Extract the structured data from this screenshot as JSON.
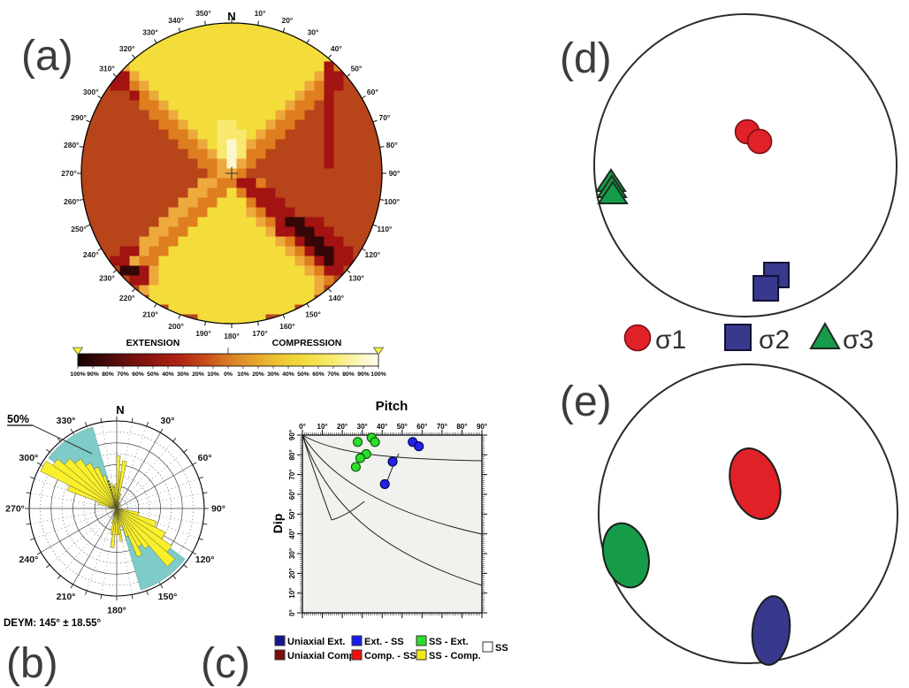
{
  "figure": {
    "panel_labels": {
      "a": "(a)",
      "b": "(b)",
      "c": "(c)",
      "d": "(d)",
      "e": "(e)"
    }
  },
  "chart_data": [
    {
      "id": "a",
      "type": "heatmap",
      "north_label": "N",
      "compass_labels": [
        "10°",
        "20°",
        "30°",
        "40°",
        "50°",
        "60°",
        "70°",
        "80°",
        "90°",
        "100°",
        "110°",
        "120°",
        "130°",
        "140°",
        "150°",
        "160°",
        "170°",
        "180°",
        "190°",
        "200°",
        "210°",
        "220°",
        "230°",
        "240°",
        "250°",
        "260°",
        "270°",
        "280°",
        "290°",
        "300°",
        "310°",
        "320°",
        "330°",
        "340°",
        "350°"
      ],
      "palette": {
        "B": "#b8441a",
        "O": "#de7e1e",
        "A": "#eda93c",
        "Y": "#f4dd3a",
        "y": "#f8e96e",
        "W": "#fdf7d0",
        "R": "#a31311",
        "K": "#350607"
      },
      "grid_rows": [
        "AYYYYYYYYYYYYYYYYYYYYYYYYYYYYAO",
        "OAYYYYYYYYYYYYYYYYYYYYYYYYYYAOO",
        "OOAYYYYYYYYYYYYYYYYYYYYYYYYAOOB",
        "BOOAYYYYYYYYYYYYYYYYYYYYYYAOOBB",
        "BBOOAYYYYYYYYYYYYYYYYYYYYROOBBB",
        "BBBRRAYYYYYYYYYYYYYYYYYYARRBBBB",
        "BBBRROAYYYYYYYYYYYYYYYYAORRBBBB",
        "BBBBBROAYYYYYYYYYYYYYYAOORBBBBB",
        "BBBBBBOOAYYYYYYYYYYYYAOOBRBBBBB",
        "BBBBBBBOOAYYYYYYYYYYAOOBBRBBBBB",
        "BBBBBBBBOOAYYYyyYYYAOOBBBRBBBBB",
        "BBBBBBBBBOOAYYyyyYAOOBBBBRBBBBB",
        "BBBBBBBBBBOOAYyWyAOOBBBBBRBBBBB",
        "BBBBBBBBBBBOOAyWyOOBBBBBBRBBBBB",
        "BBBBBBBBBBBBOOAWAOBBBBBBBRBBBBB",
        "BBBBBBBBBBBBBOAAOBBBBBBBBBBBBBB",
        "BBBBBBBBBBBBAAOORROBBBBBBBBBBBB",
        "BBBBBBBBBBBAAOOYORRRBBBBBBBBBBB",
        "BBBBBBBBBBAAOOYYYORRRBBBBBBBBBB",
        "BBBBBBBBBAAOOYYYYAORRRBBBBBBBBB",
        "BBBBBBBBAAOOYYYYYYAORKKRRBBBBBB",
        "BBBBBBBAAOOYYYYYYYYARRKKRRBBBBB",
        "BBBBBBAAOOYYYYYYYYYYAORKKRRBBBB",
        "BBBBRRAOOYYYYYYYYYYYYAORKKRRBBB",
        "BBBRRAOOYYYYYYYYYYYYYYAORKRRBBB",
        "BBBBKKRAYYYYYYYYYYYYYYYAORRBBBB",
        "BBBBBRRAYYYYYYYYYYYYYYYYAOBBBBB",
        "BBBBBBAYYYYYYYYYYYYYYYYYABBBBBB",
        "BBBBBBBYYYYYYYYYYYYYYYYYBBBBBBB",
        "BBBBBBBBBYYYYYYYYYYYYYBBBBBBBBB",
        "BBBBBBBBBBBBYYYYYYYBBBBBBBBBBBB"
      ],
      "colorbar": {
        "left_title": "EXTENSION",
        "right_title": "COMPRESSION",
        "tick_labels": [
          "100%",
          "90%",
          "80%",
          "70%",
          "60%",
          "50%",
          "40%",
          "30%",
          "20%",
          "10%",
          "0%",
          "10%",
          "20%",
          "30%",
          "40%",
          "50%",
          "60%",
          "70%",
          "80%",
          "90%",
          "100%"
        ],
        "gradient": [
          [
            0,
            "#120301"
          ],
          [
            0.06,
            "#33070a"
          ],
          [
            0.14,
            "#5d0f0c"
          ],
          [
            0.24,
            "#8c1510"
          ],
          [
            0.34,
            "#b02413"
          ],
          [
            0.42,
            "#c64a1a"
          ],
          [
            0.5,
            "#d77b24"
          ],
          [
            0.58,
            "#e5a02c"
          ],
          [
            0.66,
            "#eec135"
          ],
          [
            0.74,
            "#f2d93a"
          ],
          [
            0.84,
            "#f7e968"
          ],
          [
            0.92,
            "#fbf4ab"
          ],
          [
            1,
            "#fffdf2"
          ]
        ],
        "end_marker_color": "#f9ef3a"
      }
    },
    {
      "id": "b",
      "type": "rose",
      "north_label": "N",
      "ring_label": "50%",
      "outer_ring_percent": 50,
      "dir_labels": [
        "30°",
        "60°",
        "90°",
        "120°",
        "150°",
        "180°",
        "210°",
        "240°",
        "270°",
        "300°",
        "330°"
      ],
      "caption": "DEYM: 145° ± 18.55°",
      "mean_deg": 145,
      "error_deg": 18.55,
      "confidence_sectors": [
        [
          126.5,
          163.5
        ],
        [
          306.5,
          343.5
        ]
      ],
      "mean_marker_sector": [
        341,
        345,
        0.33
      ],
      "colors": {
        "petal": "#f9f02b",
        "sector": "#7fcbc7"
      },
      "petals": [
        [
          283,
          290,
          0.22
        ],
        [
          290,
          296,
          0.6
        ],
        [
          296,
          304,
          0.97
        ],
        [
          304,
          310,
          0.88
        ],
        [
          310,
          317,
          0.78
        ],
        [
          317,
          324,
          0.7
        ],
        [
          324,
          330,
          0.6
        ],
        [
          330,
          336,
          0.52
        ],
        [
          336,
          341,
          0.4
        ],
        [
          345,
          350,
          0.29
        ],
        [
          350,
          354,
          0.24
        ],
        [
          355,
          360,
          0.28
        ],
        [
          0,
          4,
          0.6
        ],
        [
          4,
          7,
          0.42
        ],
        [
          7,
          12,
          0.55
        ],
        [
          12,
          16,
          0.17
        ],
        [
          20,
          26,
          0.08
        ],
        [
          40,
          46,
          0.07
        ],
        [
          58,
          63,
          0.06
        ],
        [
          86,
          92,
          0.08
        ],
        [
          100,
          108,
          0.26
        ],
        [
          108,
          116,
          0.48
        ],
        [
          116,
          124,
          0.62
        ],
        [
          124,
          131,
          0.76
        ],
        [
          131,
          139,
          0.88
        ],
        [
          139,
          145,
          0.56
        ],
        [
          145,
          151,
          0.5
        ],
        [
          151,
          157,
          0.6
        ],
        [
          157,
          162,
          0.34
        ],
        [
          162,
          167,
          0.22
        ],
        [
          170,
          174,
          0.38
        ],
        [
          174,
          178,
          0.3
        ],
        [
          178,
          184,
          0.3
        ],
        [
          184,
          189,
          0.45
        ],
        [
          189,
          194,
          0.3
        ],
        [
          194,
          199,
          0.18
        ],
        [
          199,
          204,
          0.1
        ],
        [
          214,
          220,
          0.07
        ],
        [
          236,
          242,
          0.08
        ],
        [
          264,
          270,
          0.07
        ],
        [
          276,
          281,
          0.1
        ]
      ]
    },
    {
      "id": "c",
      "type": "scatter",
      "title": "Pitch",
      "ylabel": "Dip",
      "x_ticks": [
        "0°",
        "10°",
        "20°",
        "30°",
        "40°",
        "50°",
        "60°",
        "70°",
        "80°",
        "90°"
      ],
      "y_ticks": [
        "0°",
        "10°",
        "20°",
        "30°",
        "40°",
        "50°",
        "60°",
        "70°",
        "80°",
        "90°"
      ],
      "xlim": [
        0,
        90
      ],
      "ylim": [
        0,
        90
      ],
      "series": [
        {
          "name": "SS - Ext.",
          "color": "#2ae02a",
          "edge": "#0a500a",
          "points": [
            [
              27.7,
              86.5
            ],
            [
              34.7,
              88.7
            ],
            [
              36.4,
              86.5
            ],
            [
              32,
              80.4
            ],
            [
              29,
              78.3
            ],
            [
              26.8,
              73.9
            ]
          ]
        },
        {
          "name": "Ext. - SS",
          "color": "#2222e8",
          "edge": "#000050",
          "points": [
            [
              55.3,
              86.5
            ],
            [
              58.4,
              84.3
            ],
            [
              45.2,
              76.5
            ],
            [
              41.3,
              65.2
            ]
          ]
        }
      ],
      "regime_curves": [
        "M0,0 C35,20 90,27 203,29",
        "M0,0 C30,48 95,88 203,112",
        "M0,0 C28,78 85,132 203,170",
        "M0,0 C10,32 22,66 33,96",
        "M109,21 C104,31 99,43 96,52",
        "M70,75 C58,85 44,93 33,96"
      ],
      "legend": [
        {
          "color": "#16168f",
          "label": "Uniaxial Ext."
        },
        {
          "color": "#1a1af0",
          "label": "Ext. - SS"
        },
        {
          "color": "#2ae02a",
          "label": "SS - Ext."
        },
        {
          "color": "#ffffff",
          "label": "SS"
        },
        {
          "color": "#7a0d0d",
          "label": "Uniaxial Comp."
        },
        {
          "color": "#ee1111",
          "label": "Comp. - SS"
        },
        {
          "color": "#f2e71c",
          "label": "SS - Comp."
        }
      ]
    },
    {
      "id": "d",
      "type": "stereonet_points",
      "legend": [
        {
          "symbol": "circle",
          "color": "#e02128",
          "label": "σ1"
        },
        {
          "symbol": "square",
          "color": "#38388c",
          "label": "σ2"
        },
        {
          "symbol": "triangle",
          "color": "#169c49",
          "label": "σ3"
        }
      ],
      "points": {
        "sigma1": [
          [
            0.012,
            -0.222
          ],
          [
            0.094,
            -0.158
          ]
        ],
        "sigma2": [
          [
            0.205,
            0.725
          ],
          [
            0.135,
            0.813
          ]
        ],
        "sigma3": [
          [
            -0.889,
            0.105
          ],
          [
            -0.883,
            0.146
          ],
          [
            -0.877,
            0.187
          ]
        ]
      }
    },
    {
      "id": "e",
      "type": "stereonet_ellipses",
      "ellipses": [
        {
          "name": "sigma1",
          "color": "#e02128",
          "cx": 0.047,
          "cy": -0.201,
          "rx": 0.16,
          "ry": 0.243,
          "rot": -18
        },
        {
          "name": "sigma3",
          "color": "#169c49",
          "cx": -0.817,
          "cy": 0.278,
          "rx": 0.148,
          "ry": 0.219,
          "rot": -15
        },
        {
          "name": "sigma2",
          "color": "#38388c",
          "cx": 0.154,
          "cy": 0.781,
          "rx": 0.124,
          "ry": 0.231,
          "rot": 6
        }
      ]
    }
  ]
}
